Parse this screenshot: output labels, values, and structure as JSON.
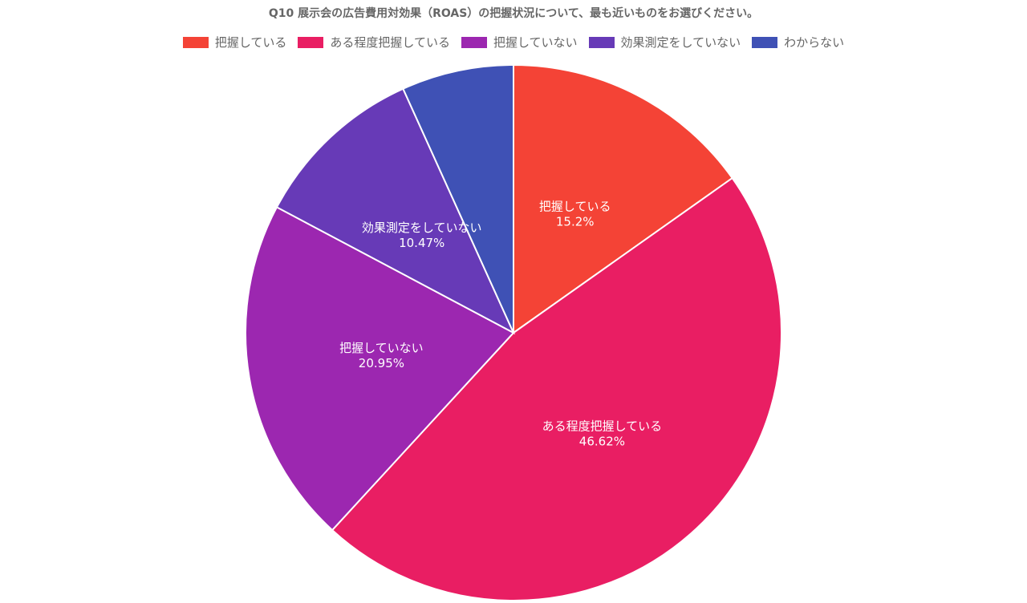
{
  "chart_data": {
    "type": "pie",
    "title": "Q10 展示会の広告費用対効果（ROAS）の把握状況について、最も近いものをお選びください。",
    "legend_position": "top",
    "start_angle_deg": 0,
    "direction": "clockwise",
    "slices": [
      {
        "label": "把握している",
        "value": 15.2,
        "value_label": "15.2%",
        "color": "#f44336"
      },
      {
        "label": "ある程度把握している",
        "value": 46.62,
        "value_label": "46.62%",
        "color": "#e91e63"
      },
      {
        "label": "把握していない",
        "value": 20.95,
        "value_label": "20.95%",
        "color": "#9c27b0"
      },
      {
        "label": "効果測定をしていない",
        "value": 10.47,
        "value_label": "10.47%",
        "color": "#673ab7"
      },
      {
        "label": "わからない",
        "value": 6.76,
        "value_label": "",
        "color": "#3f51b5"
      }
    ]
  }
}
